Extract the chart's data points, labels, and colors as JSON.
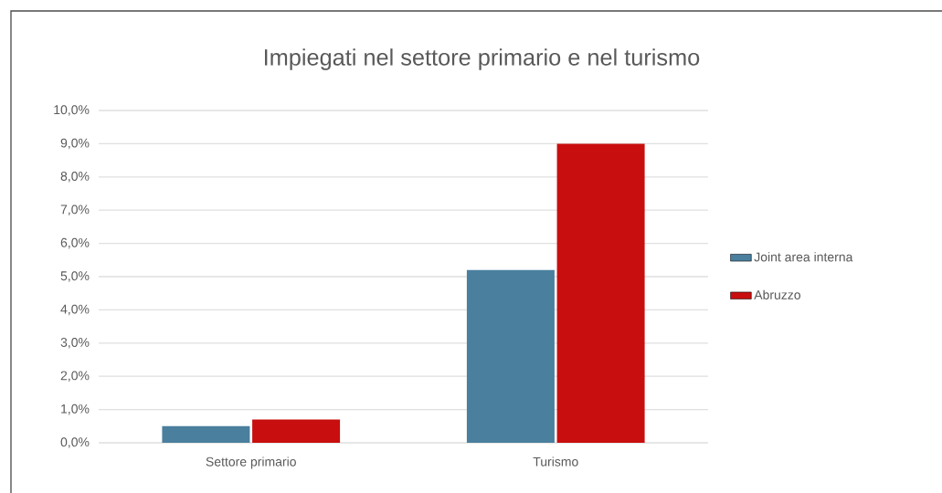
{
  "chart_data": {
    "type": "bar",
    "title": "Impiegati nel settore primario e nel turismo",
    "categories": [
      "Settore primario",
      "Turismo"
    ],
    "series": [
      {
        "name": "Joint area interna",
        "color": "#4a7f9e",
        "values": [
          0.5,
          5.2
        ]
      },
      {
        "name": "Abruzzo",
        "color": "#c80e0e",
        "values": [
          0.7,
          9.0
        ]
      }
    ],
    "ylim": [
      0,
      10
    ],
    "yticks": [
      {
        "value": 0,
        "label": "0,0%"
      },
      {
        "value": 1,
        "label": "1,0%"
      },
      {
        "value": 2,
        "label": "2,0%"
      },
      {
        "value": 3,
        "label": "3,0%"
      },
      {
        "value": 4,
        "label": "4,0%"
      },
      {
        "value": 5,
        "label": "5,0%"
      },
      {
        "value": 6,
        "label": "6,0%"
      },
      {
        "value": 7,
        "label": "7,0%"
      },
      {
        "value": 8,
        "label": "8,0%"
      },
      {
        "value": 9,
        "label": "9,0%"
      },
      {
        "value": 10,
        "label": "10,0%"
      }
    ],
    "grid": "y",
    "legend": "right"
  }
}
